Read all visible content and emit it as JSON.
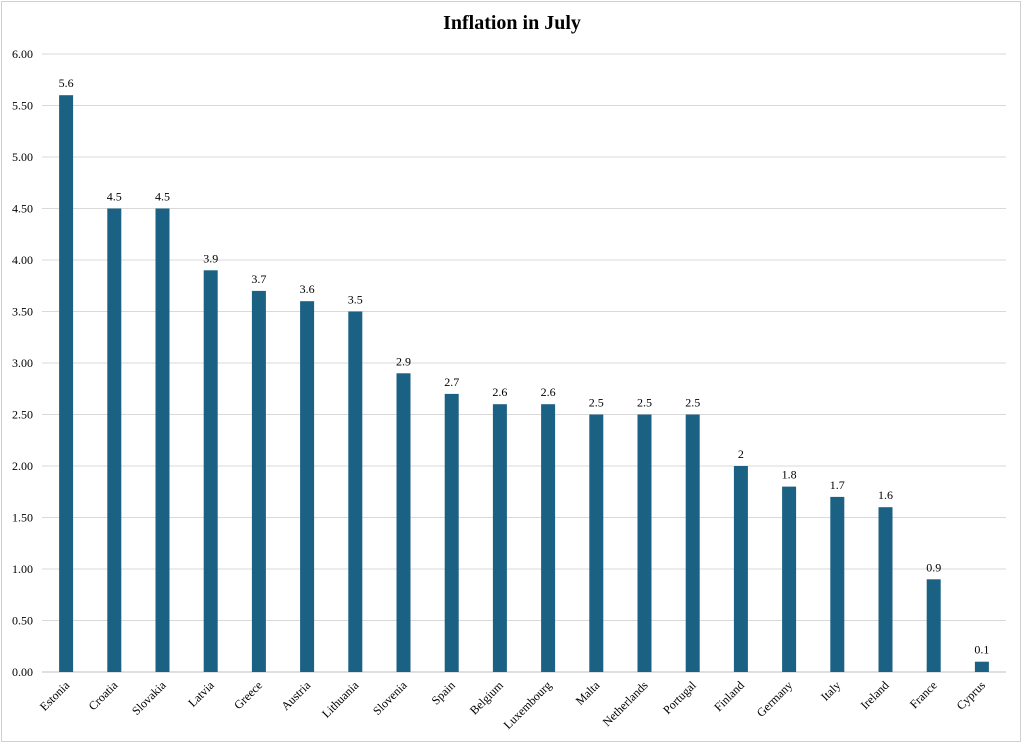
{
  "chart_data": {
    "type": "bar",
    "title": "Inflation in July",
    "xlabel": "",
    "ylabel": "",
    "ylim": [
      0,
      6
    ],
    "y_ticks": [
      "0.00",
      "0.50",
      "1.00",
      "1.50",
      "2.00",
      "2.50",
      "3.00",
      "3.50",
      "4.00",
      "4.50",
      "5.00",
      "5.50",
      "6.00"
    ],
    "y_tick_values": [
      0,
      0.5,
      1,
      1.5,
      2,
      2.5,
      3,
      3.5,
      4,
      4.5,
      5,
      5.5,
      6
    ],
    "grid": true,
    "legend": "none",
    "bar_color": "#1b6184",
    "categories": [
      "Estonia",
      "Croatia",
      "Slovakia",
      "Latvia",
      "Greece",
      "Austria",
      "Lithuania",
      "Slovenia",
      "Spain",
      "Belgium",
      "Luxembourg",
      "Malta",
      "Netherlands",
      "Portugal",
      "Finland",
      "Germany",
      "Italy",
      "Ireland",
      "France",
      "Cyprus"
    ],
    "values": [
      5.6,
      4.5,
      4.5,
      3.9,
      3.7,
      3.6,
      3.5,
      2.9,
      2.7,
      2.6,
      2.6,
      2.5,
      2.5,
      2.5,
      2,
      1.8,
      1.7,
      1.6,
      0.9,
      0.1
    ],
    "data_labels": [
      "5.6",
      "4.5",
      "4.5",
      "3.9",
      "3.7",
      "3.6",
      "3.5",
      "2.9",
      "2.7",
      "2.6",
      "2.6",
      "2.5",
      "2.5",
      "2.5",
      "2",
      "1.8",
      "1.7",
      "1.6",
      "0.9",
      "0.1"
    ]
  }
}
